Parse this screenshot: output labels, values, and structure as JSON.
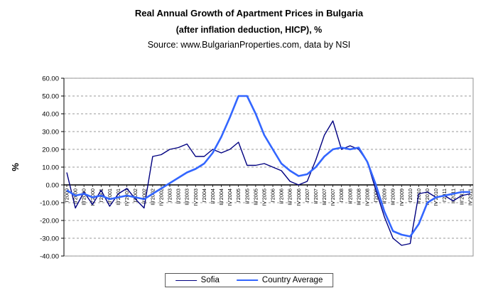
{
  "chart_data": {
    "type": "line",
    "title": "Real Annual Growth of Apartment Prices in Bulgaria",
    "subtitle": "(after inflation deduction, HICP), %",
    "source": "Source: www.BulgarianProperties.com, data by NSI",
    "ylabel": "%",
    "ylim": [
      -40,
      60
    ],
    "ytick_step": 10,
    "ytick_labels": [
      "60.00",
      "50.00",
      "40.00",
      "30.00",
      "20.00",
      "10.00",
      "0.00",
      "-10.00",
      "-20.00",
      "-30.00",
      "-40.00"
    ],
    "grid": "horizontal-dashed",
    "legend_position": "bottom-center",
    "categories": [
      "I'2000",
      "II'2000",
      "III'2000",
      "IV'2000",
      "I'2001",
      "II'2001",
      "III'2001",
      "IV'2001",
      "I'2002",
      "II'2002",
      "III'2002",
      "IV'2002",
      "I'2003",
      "II'2003",
      "III'2003",
      "IV'2003",
      "I'2004",
      "II'2004",
      "III'2004",
      "IV'2004",
      "I'2005",
      "II'2005",
      "III'2005",
      "IV'2005",
      "I'2006",
      "II'2006",
      "III'2006",
      "IV'2006",
      "I'2007",
      "II'2007",
      "III'2007",
      "IV'2007",
      "I'2008",
      "II'2008",
      "III'2008",
      "IV'2008",
      "I'2009",
      "II'2009",
      "III'2009",
      "IV'2009",
      "I'2010",
      "II'2010",
      "III'2010",
      "IV'2010",
      "I'2011",
      "II'2011",
      "III'2011",
      "IV'2011"
    ],
    "series": [
      {
        "name": "Sofia",
        "color": "#000080",
        "width": 1.4,
        "values": [
          7,
          -13,
          -4,
          -11,
          -3,
          -12,
          -5,
          -2,
          -8,
          -13,
          16,
          17,
          20,
          21,
          23,
          16,
          16,
          20,
          18,
          20,
          24,
          11,
          11,
          12,
          10,
          8,
          2,
          0,
          2,
          14,
          28,
          36,
          20,
          22,
          20,
          13,
          -3,
          -18,
          -30,
          -34,
          -33,
          -5,
          -4,
          -7,
          -6,
          -9,
          -6,
          -5
        ]
      },
      {
        "name": "Country Average",
        "color": "#3366FF",
        "width": 2.6,
        "values": [
          -3,
          -6,
          -5,
          -7,
          -6,
          -8,
          -7,
          -6,
          -7,
          -8,
          -5,
          -2,
          1,
          4,
          7,
          9,
          12,
          18,
          27,
          38,
          50,
          50,
          40,
          28,
          20,
          12,
          8,
          5,
          6,
          10,
          16,
          20,
          21,
          20,
          21,
          13,
          0,
          -15,
          -26,
          -28,
          -29,
          -22,
          -10,
          -7,
          -6,
          -5,
          -4,
          -4
        ]
      }
    ]
  }
}
